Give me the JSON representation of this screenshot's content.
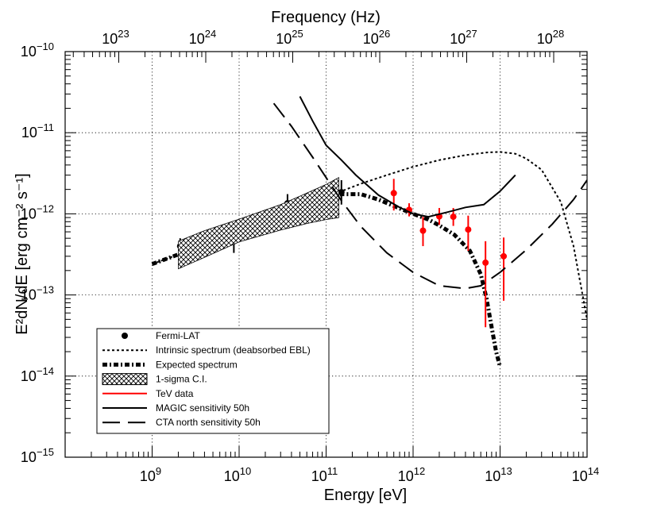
{
  "chart_data": {
    "type": "line",
    "title": "",
    "xlabel": "Energy [eV]",
    "x2label": "Frequency (Hz)",
    "ylabel": "E²dN/dE  [erg cm⁻² s⁻¹]",
    "xscale": "log",
    "yscale": "log",
    "xlim": [
      100000000.0,
      100000000000000.0
    ],
    "ylim": [
      1e-15,
      1e-10
    ],
    "x2lim": [
      2.418e+22,
      2.418e+28
    ],
    "grid": true,
    "legend_position": "bottom-left",
    "x_ticks": [
      {
        "value": 1000000000.0,
        "mant": "10",
        "exp": "9"
      },
      {
        "value": 10000000000.0,
        "mant": "10",
        "exp": "10"
      },
      {
        "value": 100000000000.0,
        "mant": "10",
        "exp": "11"
      },
      {
        "value": 1000000000000.0,
        "mant": "10",
        "exp": "12"
      },
      {
        "value": 10000000000000.0,
        "mant": "10",
        "exp": "13"
      },
      {
        "value": 100000000000000.0,
        "mant": "10",
        "exp": "14"
      }
    ],
    "y_ticks": [
      {
        "value": 1e-15,
        "mant": "10",
        "exp": "−15"
      },
      {
        "value": 1e-14,
        "mant": "10",
        "exp": "−14"
      },
      {
        "value": 1e-13,
        "mant": "10",
        "exp": "−13"
      },
      {
        "value": 1e-12,
        "mant": "10",
        "exp": "−12"
      },
      {
        "value": 1e-11,
        "mant": "10",
        "exp": "−11"
      },
      {
        "value": 1e-10,
        "mant": "10",
        "exp": "−10"
      }
    ],
    "x2_ticks": [
      {
        "value": 1e+23,
        "mant": "10",
        "exp": "23"
      },
      {
        "value": 1e+24,
        "mant": "10",
        "exp": "24"
      },
      {
        "value": 1e+25,
        "mant": "10",
        "exp": "25"
      },
      {
        "value": 1e+26,
        "mant": "10",
        "exp": "26"
      },
      {
        "value": 1e+27,
        "mant": "10",
        "exp": "27"
      },
      {
        "value": 1e+28,
        "mant": "10",
        "exp": "28"
      }
    ],
    "series": [
      {
        "name": "Fermi-LAT",
        "kind": "points",
        "color": "#000000",
        "points": [
          {
            "x": 2100000000.0,
            "y": 4e-13,
            "ylo": 3.2e-13,
            "yhi": 5e-13
          },
          {
            "x": 8700000000.0,
            "y": 4.6e-13,
            "ylo": 3.3e-13,
            "yhi": 6.2e-13
          },
          {
            "x": 36000000000.0,
            "y": 1.35e-12,
            "ylo": 1.05e-12,
            "yhi": 1.75e-12
          },
          {
            "x": 150000000000.0,
            "y": 1.85e-12,
            "ylo": 1.3e-12,
            "yhi": 2.6e-12
          }
        ]
      },
      {
        "name": "Intrinsic spectrum (deabsorbed EBL)",
        "kind": "line",
        "style": "dotted",
        "color": "#000000",
        "x": [
          1000000000.0,
          3000000000.0,
          10000000000.0,
          30000000000.0,
          100000000000.0,
          150000000000.0,
          250000000000.0,
          500000000000.0,
          1000000000000.0,
          2000000000000.0,
          4000000000000.0,
          7000000000000.0,
          10000000000000.0,
          15000000000000.0,
          20000000000000.0,
          30000000000000.0,
          50000000000000.0,
          70000000000000.0,
          100000000000000.0
        ],
        "y": [
          2.4e-13,
          3.7e-13,
          6e-13,
          1e-12,
          1.6e-12,
          1.9e-12,
          2.35e-12,
          3e-12,
          3.8e-12,
          4.6e-12,
          5.3e-12,
          5.7e-12,
          5.8e-12,
          5.5e-12,
          4.8e-12,
          3.5e-12,
          1.4e-12,
          4e-13,
          5e-14
        ]
      },
      {
        "name": "Expected spectrum",
        "kind": "line",
        "style": "dashdot-thick",
        "color": "#000000",
        "x": [
          1000000000.0,
          3000000000.0,
          10000000000.0,
          30000000000.0,
          100000000000.0,
          150000000000.0,
          250000000000.0,
          400000000000.0,
          600000000000.0,
          1000000000000.0,
          1500000000000.0,
          2000000000000.0,
          3000000000000.0,
          4500000000000.0,
          6000000000000.0,
          7000000000000.0,
          8000000000000.0,
          9000000000000.0,
          10000000000000.0
        ],
        "y": [
          2.4e-13,
          3.7e-13,
          6e-13,
          1e-12,
          1.6e-12,
          1.75e-12,
          1.75e-12,
          1.5e-12,
          1.25e-12,
          1e-12,
          8.5e-13,
          7.2e-13,
          5.5e-13,
          3.5e-13,
          1.8e-13,
          9e-14,
          4e-14,
          2e-14,
          1.3e-14
        ]
      },
      {
        "name": "1-sigma C.I.",
        "kind": "band",
        "color": "#000000",
        "x": [
          2000000000.0,
          4000000000.0,
          10000000000.0,
          30000000000.0,
          60000000000.0,
          100000000000.0,
          140000000000.0
        ],
        "ylo": [
          2.1e-13,
          2.9e-13,
          4.5e-13,
          6.3e-13,
          7.6e-13,
          8.5e-13,
          9e-13
        ],
        "yhi": [
          4.6e-13,
          6.2e-13,
          8.6e-13,
          1.3e-12,
          1.8e-12,
          2.3e-12,
          2.8e-12
        ]
      },
      {
        "name": "TeV data",
        "kind": "points",
        "color": "#ff0000",
        "points": [
          {
            "x": 600000000000.0,
            "y": 1.8e-12,
            "ylo": 1.1e-12,
            "yhi": 2.7e-12
          },
          {
            "x": 900000000000.0,
            "y": 1.12e-12,
            "ylo": 9.3e-13,
            "yhi": 1.35e-12
          },
          {
            "x": 1300000000000.0,
            "y": 6.2e-13,
            "ylo": 4e-13,
            "yhi": 9.2e-13
          },
          {
            "x": 2000000000000.0,
            "y": 9.3e-13,
            "ylo": 7.3e-13,
            "yhi": 1.18e-12
          },
          {
            "x": 2900000000000.0,
            "y": 9.2e-13,
            "ylo": 7.1e-13,
            "yhi": 1.18e-12
          },
          {
            "x": 4300000000000.0,
            "y": 6.4e-13,
            "ylo": 3.5e-13,
            "yhi": 9.5e-13
          },
          {
            "x": 6800000000000.0,
            "y": 2.5e-13,
            "ylo": 4e-14,
            "yhi": 4.6e-13
          },
          {
            "x": 11000000000000.0,
            "y": 3e-13,
            "ylo": 8.5e-14,
            "yhi": 5.1e-13
          }
        ]
      },
      {
        "name": "MAGIC sensitivity 50h",
        "kind": "line",
        "style": "solid",
        "color": "#000000",
        "x": [
          50000000000.0,
          70000000000.0,
          100000000000.0,
          150000000000.0,
          220000000000.0,
          400000000000.0,
          700000000000.0,
          1000000000000.0,
          1500000000000.0,
          2500000000000.0,
          4000000000000.0,
          6500000000000.0,
          10000000000000.0,
          15000000000000.0
        ],
        "y": [
          2.8e-11,
          1.4e-11,
          7e-12,
          4.6e-12,
          3e-12,
          1.7e-12,
          1.2e-12,
          1e-12,
          9.2e-13,
          1.05e-12,
          1.2e-12,
          1.3e-12,
          1.9e-12,
          3e-12
        ]
      },
      {
        "name": "CTA north sensitivity 50h",
        "kind": "line",
        "style": "dashed",
        "color": "#000000",
        "x": [
          25000000000.0,
          40000000000.0,
          70000000000.0,
          100000000000.0,
          150000000000.0,
          250000000000.0,
          500000000000.0,
          1000000000000.0,
          2000000000000.0,
          4000000000000.0,
          6000000000000.0,
          10000000000000.0,
          20000000000000.0,
          40000000000000.0,
          70000000000000.0,
          100000000000000.0
        ],
        "y": [
          2.3e-11,
          1.2e-11,
          5e-12,
          2.8e-12,
          1.45e-12,
          7e-13,
          3.3e-13,
          1.9e-13,
          1.3e-13,
          1.2e-13,
          1.3e-13,
          1.9e-13,
          3.6e-13,
          7.5e-13,
          1.5e-12,
          2.6e-12
        ]
      }
    ]
  }
}
